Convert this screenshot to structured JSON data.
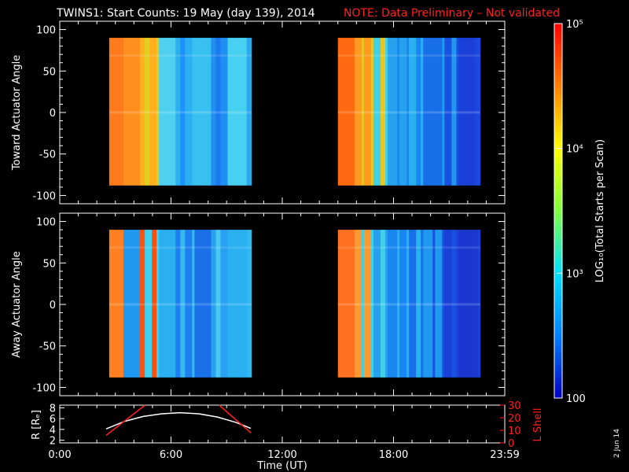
{
  "title": "TWINS1: Start Counts: 19 May (day 139), 2014",
  "note": "NOTE: Data Preliminary – Not validated",
  "date_stamp": "2 Jun 14",
  "colors": {
    "background": "#000000",
    "axes": "#ffffff",
    "note": "#ff2020",
    "lshell": "#ff2020",
    "radius": "#ffffff"
  },
  "chart_data": [
    {
      "type": "heatmap",
      "ylabel": "Toward Actuator Angle",
      "ylim": [
        -110,
        110
      ],
      "yticks": [
        "100",
        "50",
        "0",
        "-50",
        "-100"
      ],
      "xlim_hours": [
        0,
        24
      ],
      "y_extent": [
        -88,
        90
      ],
      "segments": [
        {
          "start": "2:40",
          "end": "10:20",
          "palette": [
            "#ff7a1a",
            "#ff9020",
            "#ffb020",
            "#e0d020",
            "#4fd0f0",
            "#2ab0f0",
            "#1e90ff",
            "#38c0f0",
            "#2090f0",
            "#1a78f0",
            "#48d0f0",
            "#2aa8f0"
          ]
        },
        {
          "start": "15:00",
          "end": "22:40",
          "palette": [
            "#ff6a10",
            "#ff9a20",
            "#e8c820",
            "#40d0e8",
            "#28a0f0",
            "#1888f0",
            "#2ab0f0",
            "#1870e8",
            "#2098f0",
            "#1850e0",
            "#1a40d8",
            "#1a48e0"
          ]
        }
      ]
    },
    {
      "type": "heatmap",
      "ylabel": "Away Actuator Angle",
      "ylim": [
        -110,
        110
      ],
      "yticks": [
        "100",
        "50",
        "0",
        "-50",
        "-100"
      ],
      "xlim_hours": [
        0,
        24
      ],
      "y_extent": [
        -88,
        90
      ],
      "segments": [
        {
          "start": "2:40",
          "end": "10:20",
          "palette": [
            "#ff8020",
            "#2098f0",
            "#ff5010",
            "#40d0f0",
            "#2ab0f0",
            "#1e80f0",
            "#38b8f0",
            "#1a70e8",
            "#2aa0f0",
            "#48c8f0",
            "#2ab0f0",
            "#30b8f0"
          ]
        },
        {
          "start": "15:00",
          "end": "22:40",
          "palette": [
            "#ff7020",
            "#ff9a30",
            "#40d0e8",
            "#28a0f0",
            "#1888f0",
            "#2ab0f0",
            "#1870e8",
            "#2098f0",
            "#1850e0",
            "#1a40d8",
            "#1a38d0",
            "#1a40d8"
          ]
        }
      ]
    },
    {
      "type": "line",
      "ylabel": "R [Rₑ]",
      "ylabel2": "L Shell",
      "yticks": [
        "8",
        "6",
        "4",
        "2"
      ],
      "yticks2": [
        "30",
        "20",
        "10",
        "0"
      ],
      "xlabel": "Time (UT)",
      "xticks": [
        "0:00",
        "6:00",
        "12:00",
        "18:00",
        "23:59"
      ],
      "ylim": [
        1.5,
        8.5
      ],
      "ylim2": [
        0,
        30
      ],
      "series": [
        {
          "color": "#ffffff",
          "x_hours": [
            2.5,
            3.5,
            4.5,
            5.5,
            6.5,
            7.5,
            8.5,
            9.5,
            10.3
          ],
          "values": [
            4.1,
            5.5,
            6.4,
            6.9,
            7.1,
            6.9,
            6.3,
            5.3,
            4.2
          ]
        },
        {
          "color": "#ff2020",
          "segments": [
            {
              "x_hours": [
                2.5,
                4.6
              ],
              "values": [
                6,
                34
              ]
            },
            {
              "x_hours": [
                8.6,
                10.3
              ],
              "values": [
                34,
                8
              ]
            }
          ]
        }
      ]
    },
    {
      "type": "colorbar",
      "label": "LOG₁₀(Total Starts per Scan)",
      "tick_labels": [
        "10⁵",
        "10⁴",
        "10³",
        "100"
      ],
      "range": [
        100,
        100000
      ],
      "colors": [
        "#ff0000",
        "#ff8000",
        "#ffff00",
        "#80ff40",
        "#00e0ff",
        "#0080ff",
        "#0000c0"
      ]
    }
  ]
}
